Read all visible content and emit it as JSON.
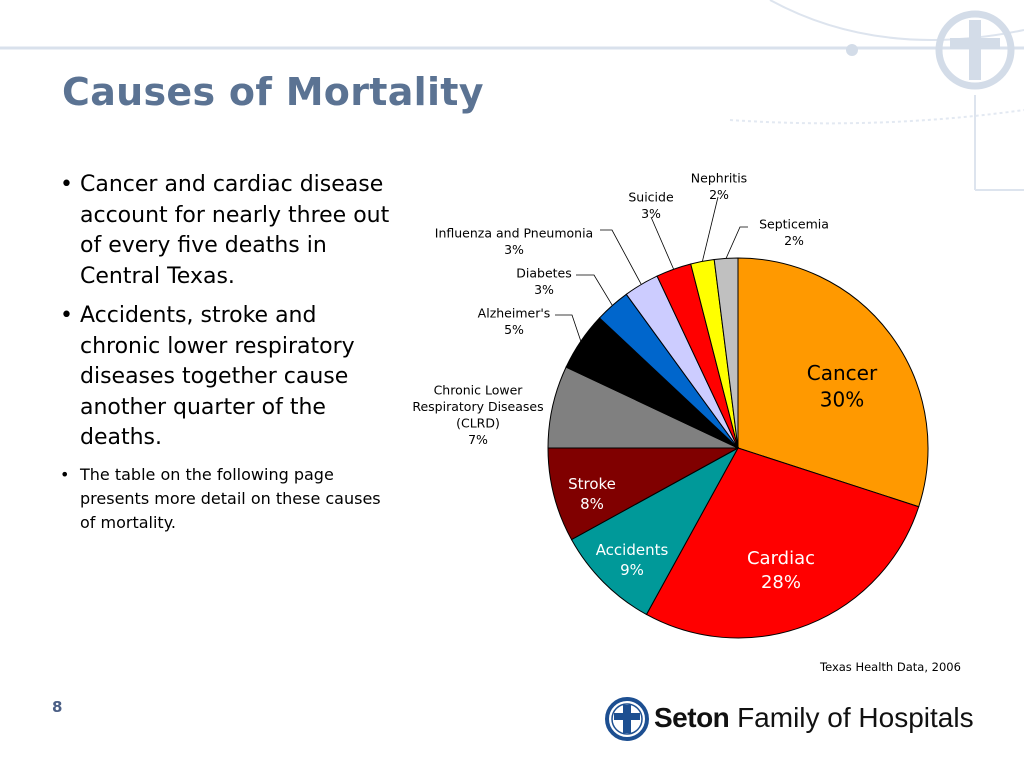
{
  "slide": {
    "title": "Causes of Mortality",
    "page_number": "8",
    "source": "Texas Health Data, 2006",
    "bullets": [
      "Cancer and cardiac disease account for nearly three out of every five deaths in Central Texas.",
      "Accidents, stroke  and chronic lower respiratory diseases together cause another quarter of the deaths.",
      "The table on the following page presents more detail on these causes of mortality."
    ],
    "logo": {
      "brand": "Seton",
      "rest": "Family of Hospitals"
    },
    "accent_color": "#5b7393"
  },
  "chart_data": {
    "type": "pie",
    "start": "12 o'clock, clockwise",
    "slices": [
      {
        "label": "Cancer",
        "value": 30,
        "color": "#ff9900"
      },
      {
        "label": "Cardiac",
        "value": 28,
        "color": "#ff0000"
      },
      {
        "label": "Accidents",
        "value": 9,
        "color": "#009999"
      },
      {
        "label": "Stroke",
        "value": 8,
        "color": "#800000"
      },
      {
        "label": "Chronic Lower Respiratory Diseases (CLRD)",
        "value": 7,
        "color": "#808080"
      },
      {
        "label": "Alzheimer's",
        "value": 5,
        "color": "#000000"
      },
      {
        "label": "Diabetes",
        "value": 3,
        "color": "#0066cc"
      },
      {
        "label": "Influenza and Pneumonia",
        "value": 3,
        "color": "#ccccff"
      },
      {
        "label": "Suicide",
        "value": 3,
        "color": "#ff0000"
      },
      {
        "label": "Nephritis",
        "value": 2,
        "color": "#ffff00"
      },
      {
        "label": "Septicemia",
        "value": 2,
        "color": "#c0c0c0"
      }
    ],
    "value_suffix": "%"
  }
}
